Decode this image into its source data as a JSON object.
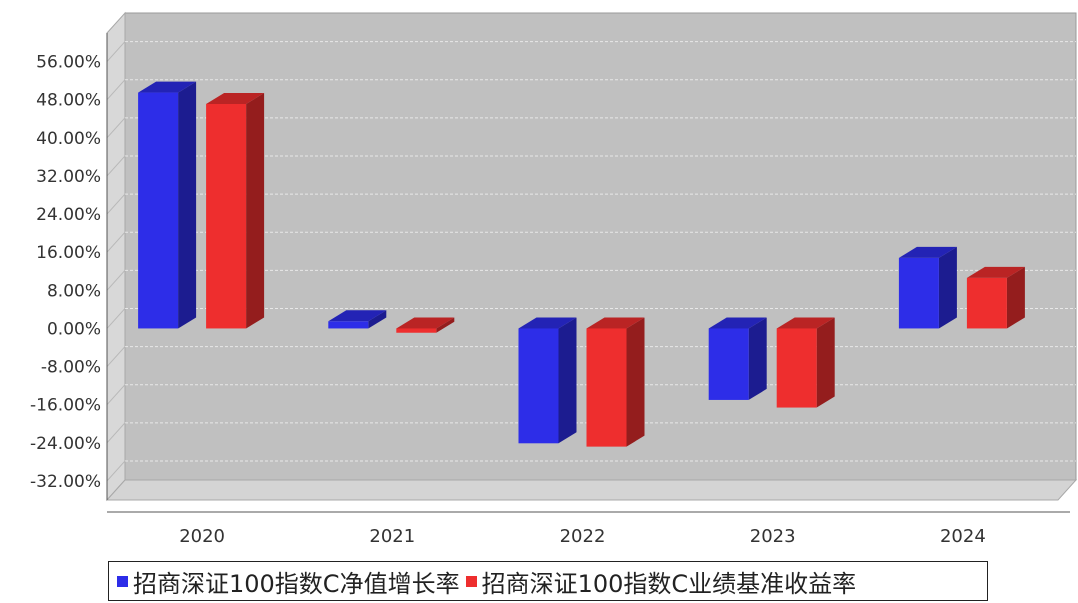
{
  "chart_data": {
    "type": "bar",
    "categories": [
      "2020",
      "2021",
      "2022",
      "2023",
      "2024"
    ],
    "series": [
      {
        "name": "招商深证100指数C净值增长率",
        "values": [
          49.5,
          1.5,
          -24.1,
          -15.0,
          14.8
        ],
        "color": "#2d2de8"
      },
      {
        "name": "招商深证100指数C业绩基准收益率",
        "values": [
          47.1,
          -0.9,
          -24.8,
          -16.6,
          10.6
        ],
        "color": "#ee2e2e"
      }
    ],
    "y_ticks": [
      "56.00%",
      "48.00%",
      "40.00%",
      "32.00%",
      "24.00%",
      "16.00%",
      "8.00%",
      "0.00%",
      "-8.00%",
      "-16.00%",
      "-24.00%",
      "-32.00%"
    ],
    "ylim": [
      -36,
      62
    ],
    "grid": true,
    "legend_position": "bottom",
    "style": "3d"
  }
}
